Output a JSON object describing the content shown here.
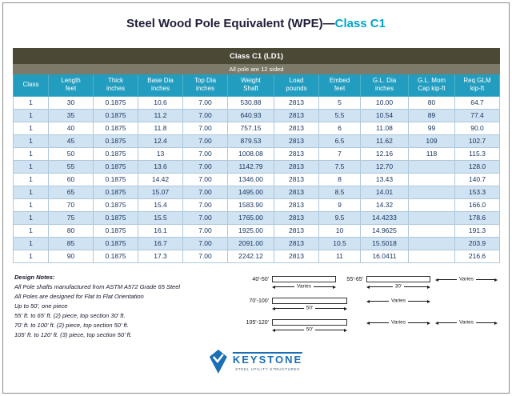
{
  "page": {
    "title_main": "Steel Wood Pole Equivalent (WPE)—",
    "title_accent": "Class C1"
  },
  "colors": {
    "accent_teal": "#00a4c8",
    "table_title_bar": "#4b4836",
    "table_subtitle_bar": "#7d7a69",
    "column_header_teal": "#239dbf",
    "row_alt_blue": "#cfe3f2",
    "logo_blue": "#1a6fb5"
  },
  "table": {
    "header": "Class C1 (LD1)",
    "subheader": "All pole are 12 sided",
    "columns": [
      {
        "line1": "Class",
        "line2": ""
      },
      {
        "line1": "Length",
        "line2": "feet"
      },
      {
        "line1": "Thick",
        "line2": "inches"
      },
      {
        "line1": "Base Dia",
        "line2": "inches"
      },
      {
        "line1": "Top Dia",
        "line2": "inches"
      },
      {
        "line1": "Weight",
        "line2": "Shaft"
      },
      {
        "line1": "Load",
        "line2": "pounds"
      },
      {
        "line1": "Embed",
        "line2": "feet"
      },
      {
        "line1": "G.L. Dia",
        "line2": "inches"
      },
      {
        "line1": "G.L. Mom",
        "line2": "Cap kip-ft"
      },
      {
        "line1": "Req GLM",
        "line2": "kip-ft"
      }
    ],
    "rows": [
      [
        "1",
        "30",
        "0.1875",
        "10.6",
        "7.00",
        "530.88",
        "2813",
        "5",
        "10.00",
        "80",
        "64.7"
      ],
      [
        "1",
        "35",
        "0.1875",
        "11.2",
        "7.00",
        "640.93",
        "2813",
        "5.5",
        "10.54",
        "89",
        "77.4"
      ],
      [
        "1",
        "40",
        "0.1875",
        "11.8",
        "7.00",
        "757.15",
        "2813",
        "6",
        "11.08",
        "99",
        "90.0"
      ],
      [
        "1",
        "45",
        "0.1875",
        "12.4",
        "7.00",
        "879.53",
        "2813",
        "6.5",
        "11.62",
        "109",
        "102.7"
      ],
      [
        "1",
        "50",
        "0.1875",
        "13",
        "7.00",
        "1008.08",
        "2813",
        "7",
        "12.16",
        "118",
        "115.3"
      ],
      [
        "1",
        "55",
        "0.1875",
        "13.6",
        "7.00",
        "1142.79",
        "2813",
        "7.5",
        "12.70",
        "",
        "128.0"
      ],
      [
        "1",
        "60",
        "0.1875",
        "14.42",
        "7.00",
        "1346.00",
        "2813",
        "8",
        "13.43",
        "",
        "140.7"
      ],
      [
        "1",
        "65",
        "0.1875",
        "15.07",
        "7.00",
        "1495.00",
        "2813",
        "8.5",
        "14.01",
        "",
        "153.3"
      ],
      [
        "1",
        "70",
        "0.1875",
        "15.4",
        "7.00",
        "1583.90",
        "2813",
        "9",
        "14.32",
        "",
        "166.0"
      ],
      [
        "1",
        "75",
        "0.1875",
        "15.5",
        "7.00",
        "1765.00",
        "2813",
        "9.5",
        "14.4233",
        "",
        "178.6"
      ],
      [
        "1",
        "80",
        "0.1875",
        "16.1",
        "7.00",
        "1925.00",
        "2813",
        "10",
        "14.9625",
        "",
        "191.3"
      ],
      [
        "1",
        "85",
        "0.1875",
        "16.7",
        "7.00",
        "2091.00",
        "2813",
        "10.5",
        "15.5018",
        "",
        "203.9"
      ],
      [
        "1",
        "90",
        "0.1875",
        "17.3",
        "7.00",
        "2242.12",
        "2813",
        "11",
        "16.0411",
        "",
        "216.6"
      ]
    ]
  },
  "notes": {
    "heading": "Design Notes:",
    "lines": [
      "All Pole shafts manufactured from ASTM A572 Grade 65 Steel",
      "All Poles are designed for Flat to Flat Orientation",
      "Up to 50', one piece",
      "55' ft. to 65' ft. (2) piece, top section 30' ft.",
      "70' ft. to 100' ft. (2) piece, top section 50' ft.",
      "105' ft. to 120' ft. (3) piece, top section 50' ft."
    ]
  },
  "diagrams": {
    "rows": [
      {
        "a_label": "40'-50'",
        "a_dim": "Varies",
        "b_label": "55'-65'",
        "b_dim": "30'",
        "c_dim": "Varies"
      },
      {
        "a_label": "70'-100'",
        "a_dim": "50'",
        "b_dim": "Varies"
      },
      {
        "a_label": "105'-120'",
        "a_dim": "50'",
        "b_dim": "Varies",
        "c_dim": "Varies"
      }
    ]
  },
  "logo": {
    "name": "KEYSTONE",
    "tagline": "STEEL UTILITY STRUCTURES"
  }
}
